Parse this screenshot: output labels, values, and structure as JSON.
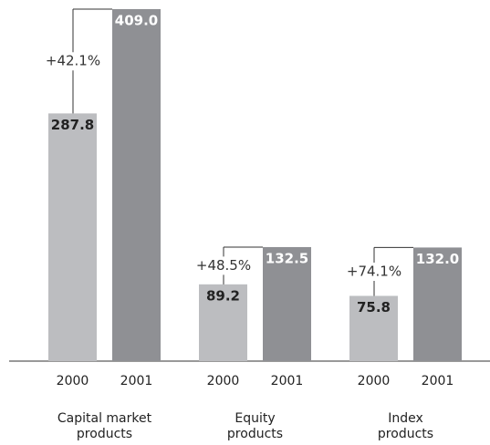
{
  "chart_data": {
    "type": "bar",
    "categories": [
      "Capital market\nproducts",
      "Equity\nproducts",
      "Index\nproducts"
    ],
    "series": [
      {
        "name": "2000",
        "color": "#bcbdc0",
        "values": [
          287.8,
          89.2,
          75.8
        ],
        "value_labels": [
          "287.8",
          "89.2",
          "75.8"
        ]
      },
      {
        "name": "2001",
        "color": "#8f9094",
        "values": [
          409.0,
          132.5,
          132.0
        ],
        "value_labels": [
          "409.0",
          "132.5",
          "132.0"
        ]
      }
    ],
    "annotations": [
      "+42.1%",
      "+48.5%",
      "+74.1%"
    ],
    "ylim": [
      0,
      409
    ]
  }
}
